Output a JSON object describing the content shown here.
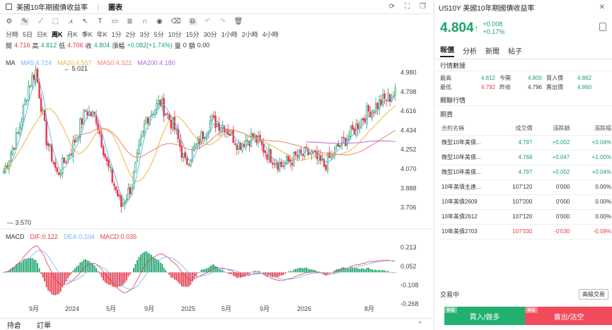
{
  "tabs": [
    {
      "label": "美國10年期國債收益率"
    },
    {
      "label": "圖表"
    }
  ],
  "toolbar": {
    "icons": [
      "settings-icon",
      "cursor-icon",
      "trendline-icon",
      "rectangle-icon",
      "pattern-icon",
      "arrow-tool-icon",
      "text-tool-icon",
      "measure-icon",
      "fibonacci-icon",
      "magnet-icon",
      "eye-icon",
      "delete-icon",
      "layout-icon",
      "undo-icon",
      "redo-icon",
      "trash-icon",
      "lock-icon"
    ]
  },
  "timeframes": [
    "分時",
    "5日",
    "日K",
    "周K",
    "月K",
    "季K",
    "年K",
    "1分",
    "2分",
    "3分",
    "5分",
    "10分",
    "15分",
    "30分",
    "1小時",
    "2小時",
    "4小時"
  ],
  "active_timeframe": "周K",
  "ohlc": {
    "open_label": "開",
    "open": "4.716",
    "high_label": "高",
    "high": "4.812",
    "low_label": "低",
    "low": "4.706",
    "close_label": "收",
    "close": "4.804",
    "change_label": "漲幅",
    "change": "+0.082(+1.74%)",
    "volume_label": "量",
    "volume": "0",
    "amount_label": "額",
    "amount": "0.00"
  },
  "ma_legend": {
    "title": "MA",
    "ma5": "MA5:4.724",
    "ma20": "MA20:4.557",
    "ma50": "MA50:4.322",
    "ma200": "MA200:4.180"
  },
  "macd_legend": {
    "title": "MACD",
    "dif": "DIF:0.122",
    "dea": "DEA:0.104",
    "macd": "MACD:0.035"
  },
  "colors": {
    "up": "#1aa266",
    "down": "#e8394a",
    "ma5": "#6db2ff",
    "ma20": "#f0b24a",
    "ma50": "#f0806a",
    "ma200": "#b06ae0"
  },
  "chart_data": {
    "type": "candlestick",
    "price_axis": [
      "4.980",
      "4.798",
      "4.616",
      "4.434",
      "4.252",
      "4.070",
      "3.888",
      "3.706"
    ],
    "macd_axis": [
      "0.213",
      "0.052",
      "-0.108",
      "-0.268"
    ],
    "x_labels": [
      "9月",
      "2024",
      "5月",
      "9月",
      "2025",
      "5月",
      "9月",
      "2026",
      "8月"
    ],
    "annotations": {
      "high": "5.021",
      "low": "3.570"
    },
    "ylim": [
      3.57,
      5.05
    ]
  },
  "bottombar": {
    "positions": "持倉",
    "orders": "訂單"
  },
  "quote": {
    "header": "US10Y 美國10年期國債收益率",
    "price": "4.804",
    "arrow": "↑",
    "change": "+0.008",
    "change_pct": "+0.17%"
  },
  "rtabs": [
    "報價",
    "分析",
    "新聞",
    "帖子"
  ],
  "market_data": {
    "title": "行情數據",
    "rows": [
      {
        "l1": "最高",
        "v1": "4.812",
        "l2": "今開",
        "v2": "4.800",
        "l3": "買入價",
        "v3": "4.862"
      },
      {
        "l1": "最低",
        "v1": "4.792",
        "l2": "昨收",
        "v2": "4.796",
        "l3": "賣出價",
        "v3": "4.860"
      }
    ]
  },
  "related": {
    "title": "關聯行情",
    "futures_label": "期貨",
    "headers": [
      "合約名稱",
      "成交價",
      "漲跌額",
      "漲跌幅"
    ],
    "rows": [
      {
        "name": "微型10年美債...",
        "price": "4.797",
        "chg": "+0.002",
        "pct": "+0.04%",
        "dir": "up"
      },
      {
        "name": "微型10年美債...",
        "price": "4.768",
        "chg": "+0.047",
        "pct": "+1.00%",
        "dir": "up"
      },
      {
        "name": "微型10年美債...",
        "price": "4.797",
        "chg": "+0.002",
        "pct": "+0.04%",
        "dir": "up"
      },
      {
        "name": "10年美債主連...",
        "price": "107'120",
        "chg": "0'000",
        "pct": "0.00%",
        "dir": "flat"
      },
      {
        "name": "10年美債2609",
        "price": "107'200",
        "chg": "0'000",
        "pct": "0.00%",
        "dir": "flat"
      },
      {
        "name": "10年美債2612",
        "price": "107'120",
        "chg": "0'000",
        "pct": "0.00%",
        "dir": "flat"
      },
      {
        "name": "10年美債2703",
        "price": "107'030",
        "chg": "-0'030",
        "pct": "-0.09%",
        "dir": "down"
      }
    ]
  },
  "trade": {
    "label": "交易中",
    "advanced": "高級交易",
    "buy": "買入/做多",
    "sell": "賣出/沽空",
    "buy_tag": "模擬",
    "sell_tag": "模擬"
  }
}
